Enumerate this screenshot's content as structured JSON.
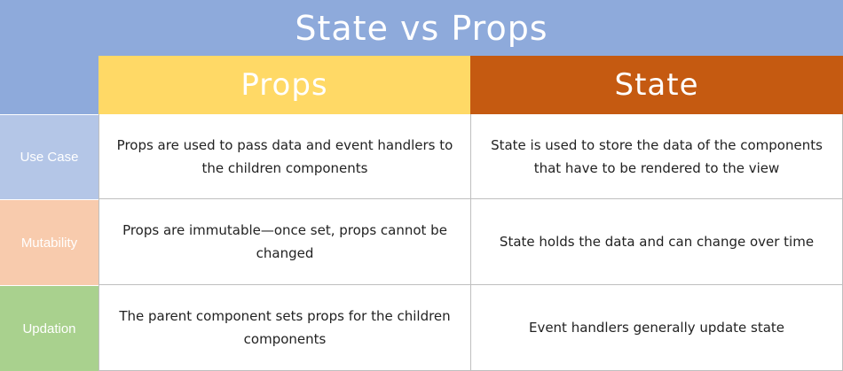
{
  "title": "State vs Props",
  "columns": {
    "props": "Props",
    "state": "State"
  },
  "rows": [
    {
      "label": "Use Case",
      "props": "Props are used to pass data and event handlers to the children components",
      "state": "State is used to store the data of the components that have to be rendered to the view"
    },
    {
      "label": "Mutability",
      "props": "Props are immutable—once set, props cannot be changed",
      "state": "State holds the data and can change over time"
    },
    {
      "label": "Updation",
      "props": "The parent component sets props for the children components",
      "state": "Event handlers generally update state"
    }
  ],
  "colors": {
    "title_bg": "#8eaadb",
    "props_header": "#ffd966",
    "state_header": "#c55a11",
    "use_case": "#b4c6e7",
    "mutability": "#f8cbad",
    "updation": "#a9d18e"
  }
}
